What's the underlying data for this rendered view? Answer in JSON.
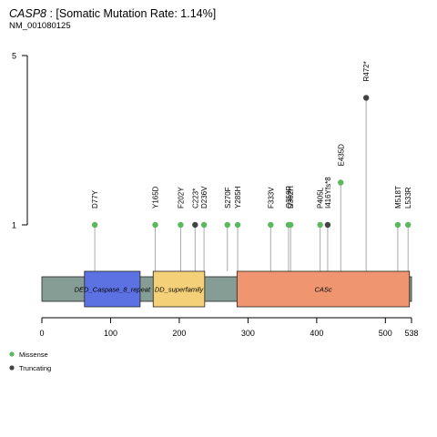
{
  "header": {
    "gene": "CASP8",
    "rate_text": " : [Somatic Mutation Rate: 1.14%]",
    "transcript": "NM_001080125"
  },
  "colors": {
    "missense": "#5cb85c",
    "truncating": "#444444",
    "backbone": "#869d96",
    "lollipop_line": "#aaaaaa",
    "axis": "#000000"
  },
  "chart_data": {
    "type": "scatter",
    "protein_length": 538,
    "x_ticks": [
      0,
      100,
      200,
      300,
      400,
      500,
      538
    ],
    "y_ticks": [
      1,
      5
    ],
    "ylim": [
      0,
      5
    ],
    "domains": [
      {
        "name": "DED_Caspase_8_repeat",
        "start": 62,
        "end": 143,
        "color": "#5d72e2"
      },
      {
        "name": "DD_superfamily",
        "start": 162,
        "end": 237,
        "color": "#f4d079"
      },
      {
        "name": "CASc",
        "start": 284,
        "end": 535,
        "color": "#ef9670"
      }
    ],
    "mutations": [
      {
        "label": "D77Y",
        "pos": 77,
        "count": 1,
        "type": "Missense"
      },
      {
        "label": "Y165D",
        "pos": 165,
        "count": 1,
        "type": "Missense"
      },
      {
        "label": "F202Y",
        "pos": 202,
        "count": 1,
        "type": "Missense"
      },
      {
        "label": "C223*",
        "pos": 223,
        "count": 1,
        "type": "Truncating"
      },
      {
        "label": "D236V",
        "pos": 236,
        "count": 1,
        "type": "Missense"
      },
      {
        "label": "S270F",
        "pos": 270,
        "count": 1,
        "type": "Missense"
      },
      {
        "label": "Y285H",
        "pos": 285,
        "count": 1,
        "type": "Missense"
      },
      {
        "label": "F333V",
        "pos": 333,
        "count": 1,
        "type": "Missense"
      },
      {
        "label": "Q359P",
        "pos": 359,
        "count": 1,
        "type": "Missense"
      },
      {
        "label": "D362H",
        "pos": 362,
        "count": 1,
        "type": "Missense"
      },
      {
        "label": "P405L",
        "pos": 405,
        "count": 1,
        "type": "Missense"
      },
      {
        "label": "I416Yfs*8",
        "pos": 416,
        "count": 1,
        "type": "Truncating"
      },
      {
        "label": "E435D",
        "pos": 435,
        "count": 2,
        "type": "Missense"
      },
      {
        "label": "R472*",
        "pos": 472,
        "count": 4,
        "type": "Truncating"
      },
      {
        "label": "M518T",
        "pos": 518,
        "count": 1,
        "type": "Missense"
      },
      {
        "label": "L533R",
        "pos": 533,
        "count": 1,
        "type": "Missense"
      }
    ],
    "legend": [
      {
        "label": "Missense",
        "type": "Missense"
      },
      {
        "label": "Truncating",
        "type": "Truncating"
      }
    ]
  }
}
